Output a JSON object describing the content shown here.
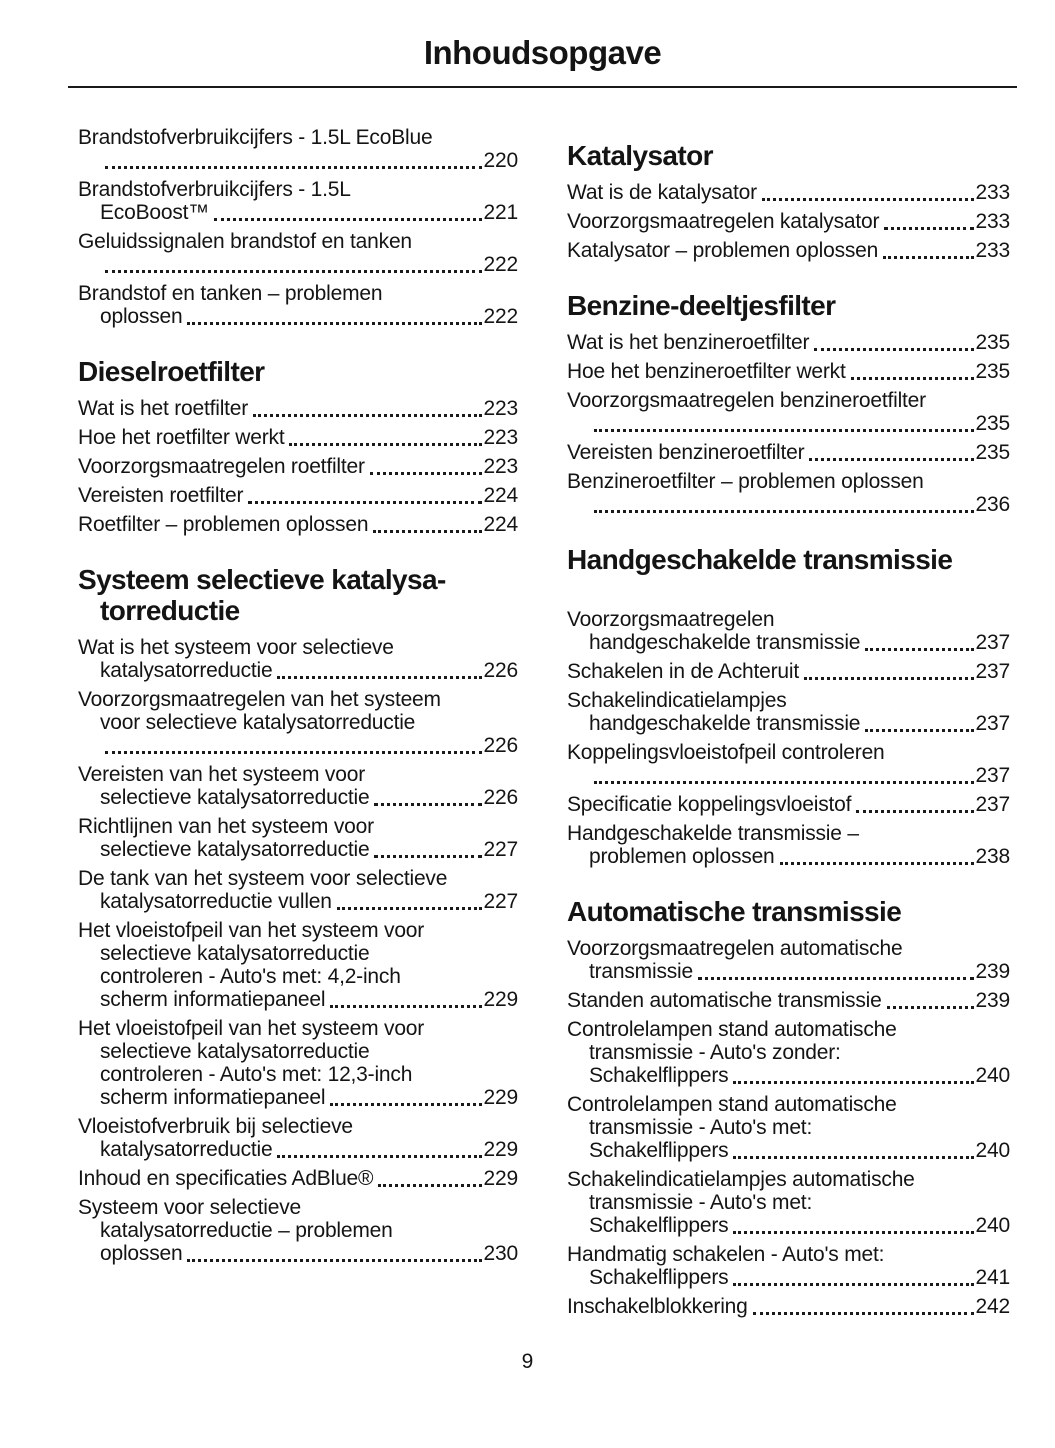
{
  "meta": {
    "title": "Inhoudsopgave",
    "page_number": "9",
    "text_color": "#141414",
    "background_color": "#ffffff"
  },
  "columns": [
    {
      "sections": [
        {
          "heading_lines": [],
          "extra_gap_after_heading": false,
          "entries": [
            {
              "lines": [
                "Brandstofverbruikcijfers - 1.5L EcoBlue"
              ],
              "last": "",
              "page": "220"
            },
            {
              "lines": [
                "Brandstofverbruikcijfers - 1.5L"
              ],
              "last": "EcoBoost™",
              "page": "221"
            },
            {
              "lines": [
                "Geluidssignalen brandstof en tanken"
              ],
              "last": "",
              "page": "222"
            },
            {
              "lines": [
                "Brandstof en tanken – problemen"
              ],
              "last": "oplossen",
              "page": "222"
            }
          ]
        },
        {
          "heading_lines": [
            "Dieselroetfilter"
          ],
          "extra_gap_after_heading": false,
          "entries": [
            {
              "lines": [],
              "last": "Wat is het roetfilter",
              "page": "223"
            },
            {
              "lines": [],
              "last": "Hoe het roetfilter werkt",
              "page": "223"
            },
            {
              "lines": [],
              "last": "Voorzorgsmaatregelen roetfilter",
              "page": "223"
            },
            {
              "lines": [],
              "last": "Vereisten roetfilter",
              "page": "224"
            },
            {
              "lines": [],
              "last": "Roetfilter – problemen oplossen",
              "page": "224"
            }
          ]
        },
        {
          "heading_lines": [
            "Systeem selectieve katalysa-",
            "torreductie"
          ],
          "extra_gap_after_heading": false,
          "entries": [
            {
              "lines": [
                "Wat is het systeem voor selectieve"
              ],
              "last": "katalysatorreductie",
              "page": "226"
            },
            {
              "lines": [
                "Voorzorgsmaatregelen van het systeem",
                "voor selectieve katalysatorreductie"
              ],
              "last": "",
              "page": "226"
            },
            {
              "lines": [
                "Vereisten van het systeem voor"
              ],
              "last": "selectieve katalysatorreductie",
              "page": "226"
            },
            {
              "lines": [
                "Richtlijnen van het systeem voor"
              ],
              "last": "selectieve katalysatorreductie",
              "page": "227"
            },
            {
              "lines": [
                "De tank van het systeem voor selectieve"
              ],
              "last": "katalysatorreductie vullen",
              "page": "227"
            },
            {
              "lines": [
                "Het vloeistofpeil van het systeem voor",
                "selectieve katalysatorreductie",
                "controleren - Auto's met: 4,2-inch"
              ],
              "last": "scherm informatiepaneel",
              "page": "229"
            },
            {
              "lines": [
                "Het vloeistofpeil van het systeem voor",
                "selectieve katalysatorreductie",
                "controleren - Auto's met: 12,3-inch"
              ],
              "last": "scherm informatiepaneel",
              "page": "229"
            },
            {
              "lines": [
                "Vloeistofverbruik bij selectieve"
              ],
              "last": "katalysatorreductie",
              "page": "229"
            },
            {
              "lines": [],
              "last": "Inhoud en specificaties AdBlue®",
              "page": "229"
            },
            {
              "lines": [
                "Systeem voor selectieve",
                "katalysatorreductie – problemen"
              ],
              "last": "oplossen",
              "page": "230"
            }
          ]
        }
      ]
    },
    {
      "sections": [
        {
          "heading_lines": [
            "Katalysator"
          ],
          "extra_gap_after_heading": false,
          "entries": [
            {
              "lines": [],
              "last": "Wat is de katalysator",
              "page": "233"
            },
            {
              "lines": [],
              "last": "Voorzorgsmaatregelen katalysator",
              "page": "233"
            },
            {
              "lines": [],
              "last": "Katalysator – problemen oplossen",
              "page": "233"
            }
          ]
        },
        {
          "heading_lines": [
            "Benzine-deeltjesfilter"
          ],
          "extra_gap_after_heading": false,
          "entries": [
            {
              "lines": [],
              "last": "Wat is het benzineroetfilter",
              "page": "235"
            },
            {
              "lines": [],
              "last": "Hoe het benzineroetfilter werkt",
              "page": "235"
            },
            {
              "lines": [
                "Voorzorgsmaatregelen benzineroetfilter"
              ],
              "last": "",
              "page": "235"
            },
            {
              "lines": [],
              "last": "Vereisten benzineroetfilter",
              "page": "235"
            },
            {
              "lines": [
                "Benzineroetfilter – problemen oplossen"
              ],
              "last": "",
              "page": "236"
            }
          ]
        },
        {
          "heading_lines": [
            "Handgeschakelde transmissie"
          ],
          "extra_gap_after_heading": true,
          "entries": [
            {
              "lines": [
                "Voorzorgsmaatregelen"
              ],
              "last": "handgeschakelde transmissie",
              "page": "237"
            },
            {
              "lines": [],
              "last": "Schakelen in de Achteruit",
              "page": "237"
            },
            {
              "lines": [
                "Schakelindicatielampjes"
              ],
              "last": "handgeschakelde transmissie",
              "page": "237"
            },
            {
              "lines": [
                "Koppelingsvloeistofpeil controleren"
              ],
              "last": "",
              "page": "237"
            },
            {
              "lines": [],
              "last": "Specificatie koppelingsvloeistof",
              "page": "237"
            },
            {
              "lines": [
                "Handgeschakelde transmissie –"
              ],
              "last": "problemen oplossen",
              "page": "238"
            }
          ]
        },
        {
          "heading_lines": [
            "Automatische transmissie"
          ],
          "extra_gap_after_heading": false,
          "entries": [
            {
              "lines": [
                "Voorzorgsmaatregelen automatische"
              ],
              "last": "transmissie",
              "page": "239"
            },
            {
              "lines": [],
              "last": "Standen automatische transmissie",
              "page": "239"
            },
            {
              "lines": [
                "Controlelampen stand automatische",
                "transmissie - Auto's zonder:"
              ],
              "last": "Schakelflippers",
              "page": "240"
            },
            {
              "lines": [
                "Controlelampen stand automatische",
                "transmissie - Auto's met:"
              ],
              "last": "Schakelflippers",
              "page": "240"
            },
            {
              "lines": [
                "Schakelindicatielampjes automatische",
                "transmissie - Auto's met:"
              ],
              "last": "Schakelflippers",
              "page": "240"
            },
            {
              "lines": [
                "Handmatig schakelen - Auto's met:"
              ],
              "last": "Schakelflippers",
              "page": "241"
            },
            {
              "lines": [],
              "last": "Inschakelblokkering",
              "page": "242"
            }
          ]
        }
      ]
    }
  ]
}
